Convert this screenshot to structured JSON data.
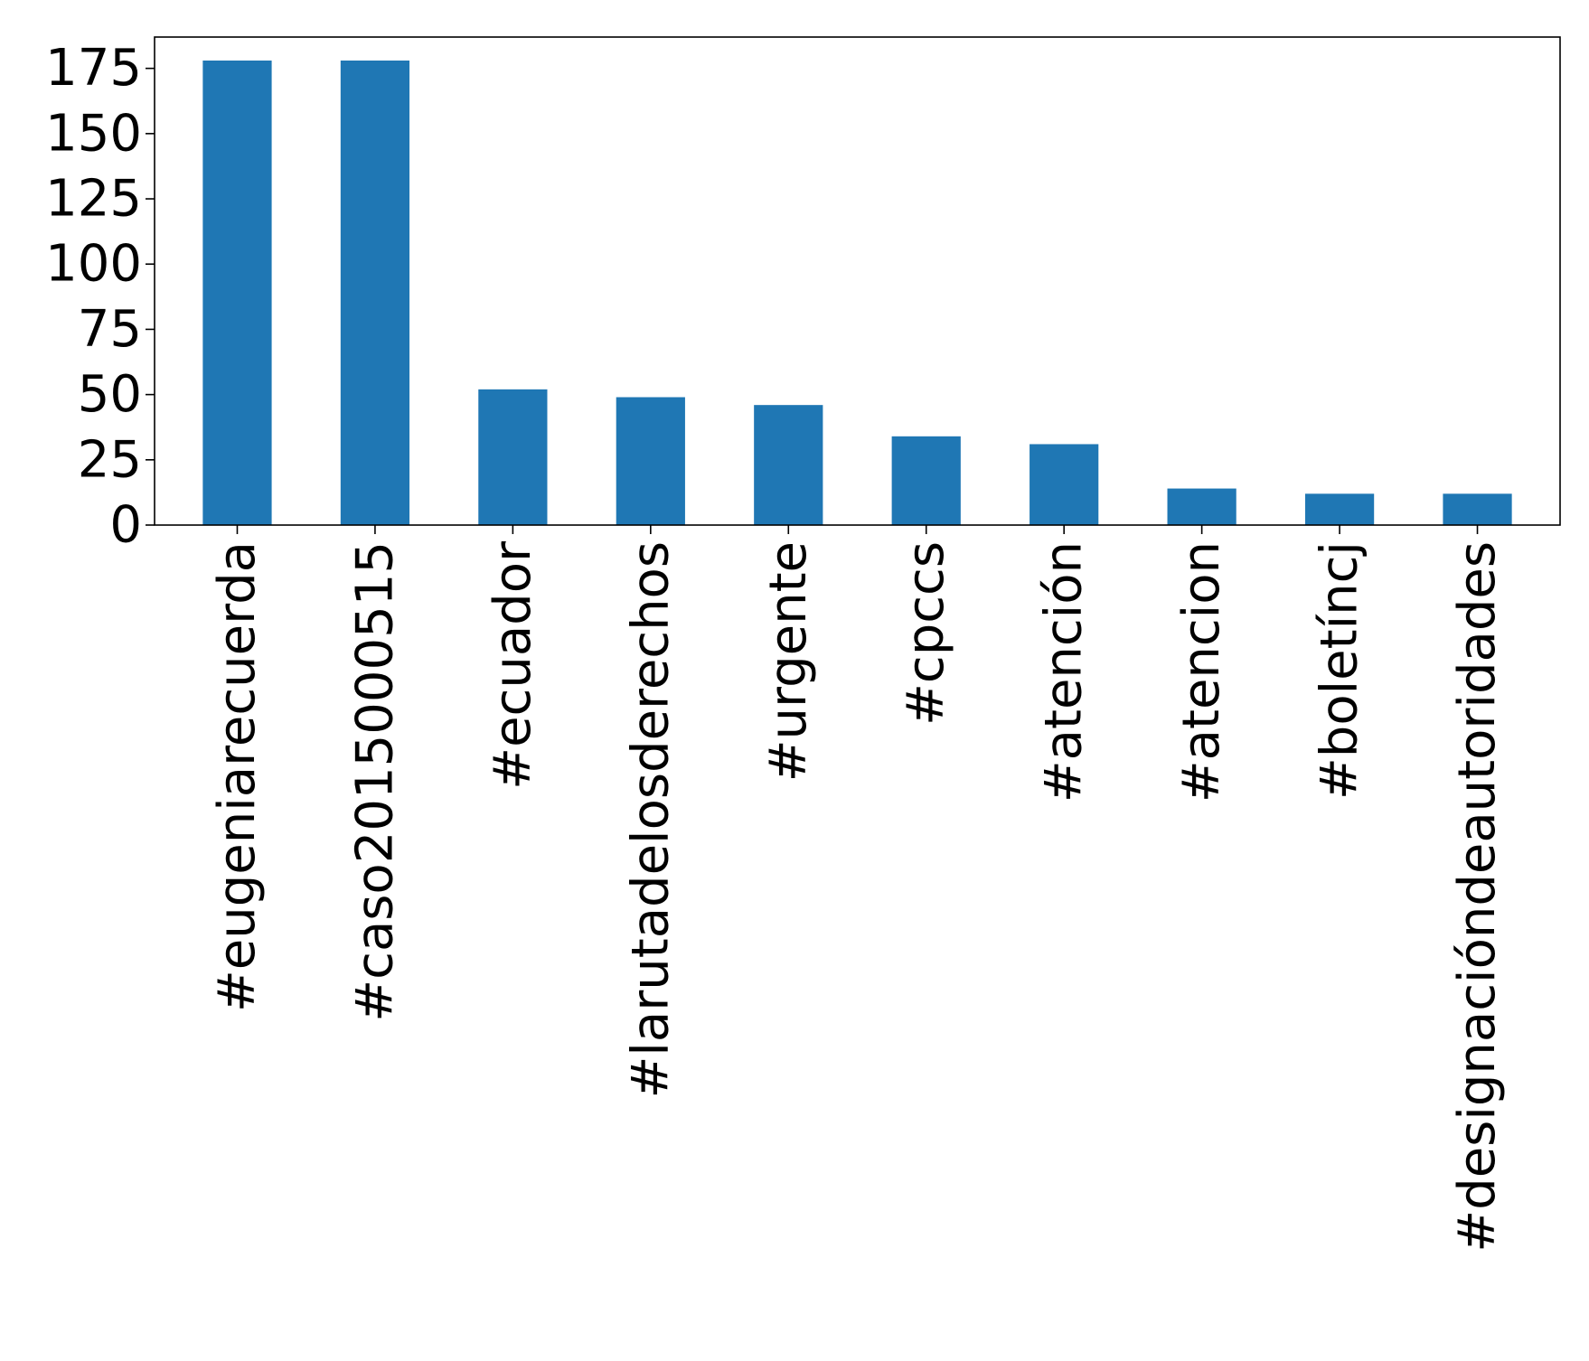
{
  "chart_data": {
    "type": "bar",
    "title": "",
    "xlabel": "",
    "ylabel": "",
    "categories": [
      "#eugeniarecuerda",
      "#caso2015000515",
      "#ecuador",
      "#larutadelosderechos",
      "#urgente",
      "#cpccs",
      "#atención",
      "#atencion",
      "#boletíncj",
      "#designacióndeautoridades"
    ],
    "values": [
      178,
      178,
      52,
      49,
      46,
      34,
      31,
      14,
      12,
      12
    ],
    "ylim": [
      0,
      187
    ],
    "yticks": [
      0,
      25,
      50,
      75,
      100,
      125,
      150,
      175
    ],
    "grid": false,
    "legend": "none",
    "colors": {
      "bar": "#1f77b4"
    }
  }
}
